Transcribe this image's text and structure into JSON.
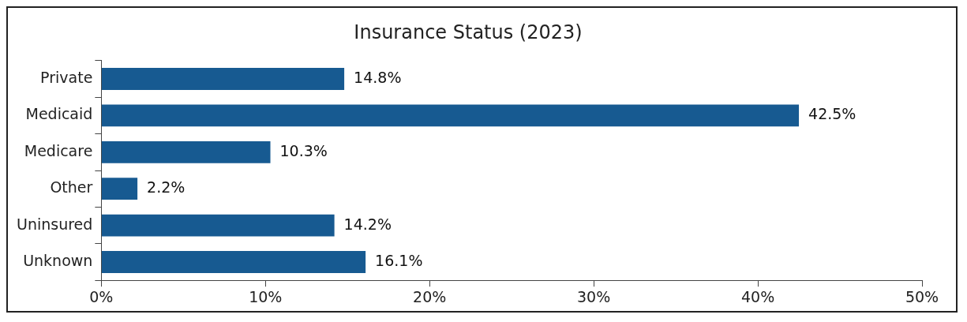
{
  "chart_data": {
    "type": "bar",
    "orientation": "horizontal",
    "title": "Insurance Status (2023)",
    "categories": [
      "Private",
      "Medicaid",
      "Medicare",
      "Other",
      "Uninsured",
      "Unknown"
    ],
    "values": [
      14.8,
      42.5,
      10.3,
      2.2,
      14.2,
      16.1
    ],
    "value_labels": [
      "14.8%",
      "42.5%",
      "10.3%",
      "2.2%",
      "14.2%",
      "16.1%"
    ],
    "color": "#175a91",
    "xlim": [
      0,
      50
    ],
    "xticks": [
      {
        "value": 0,
        "label": "0%"
      },
      {
        "value": 10,
        "label": "10%"
      },
      {
        "value": 20,
        "label": "20%"
      },
      {
        "value": 30,
        "label": "30%"
      },
      {
        "value": 40,
        "label": "40%"
      },
      {
        "value": 50,
        "label": "50%"
      }
    ],
    "grid": false,
    "legend": false
  }
}
